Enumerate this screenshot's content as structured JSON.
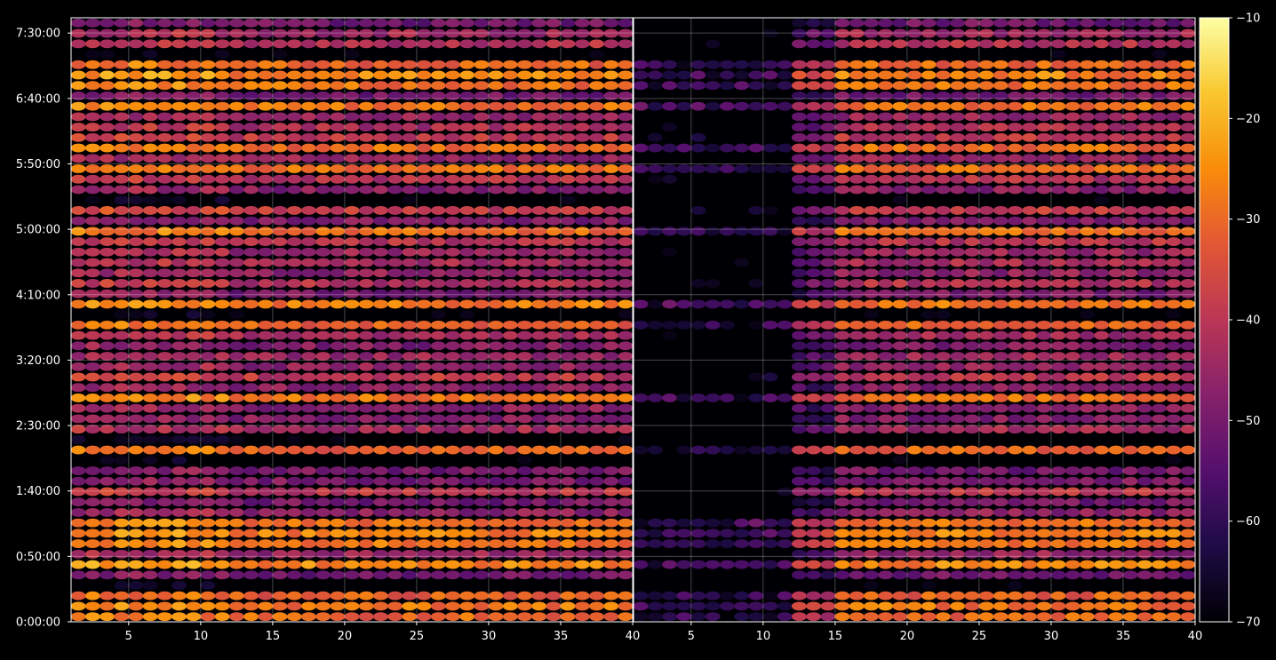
{
  "chart_data": {
    "type": "heatmap",
    "colormap": "inferno",
    "background": "#000000",
    "grid": true,
    "panels": [
      {
        "name": "",
        "xlim": [
          1,
          40
        ],
        "x_ticks": [
          5,
          10,
          15,
          20,
          25,
          30,
          35,
          40
        ],
        "x_tick_labels": [
          "5",
          "10",
          "15",
          "20",
          "25",
          "30",
          "35",
          "40"
        ],
        "channel_range": [
          1,
          39
        ],
        "activity": "full"
      },
      {
        "name": "",
        "xlim": [
          1,
          40
        ],
        "x_ticks": [
          5,
          10,
          15,
          20,
          25,
          30,
          35,
          40
        ],
        "x_tick_labels": [
          "5",
          "10",
          "15",
          "20",
          "25",
          "30",
          "35",
          "40"
        ],
        "channel_range": [
          1,
          39
        ],
        "activity": "low channels mostly empty, rising from ~12"
      }
    ],
    "y_axis": {
      "range_seconds": [
        0,
        27700
      ],
      "tick_seconds": [
        0,
        3000,
        6000,
        9000,
        12000,
        15000,
        18000,
        21000,
        24000,
        27000
      ],
      "tick_labels": [
        "0:00:00",
        "0:50:00",
        "1:40:00",
        "2:30:00",
        "3:20:00",
        "4:10:00",
        "5:00:00",
        "5:50:00",
        "6:40:00",
        "7:30:00"
      ]
    },
    "colorbar": {
      "min": -70,
      "max": -10,
      "ticks": [
        -70,
        -60,
        -50,
        -40,
        -30,
        -20,
        -10
      ],
      "tick_labels": [
        "−70",
        "−60",
        "−50",
        "−40",
        "−30",
        "−20",
        "−10"
      ]
    },
    "rows": 58,
    "strong_row_times": [
      400,
      1000,
      2750,
      3800,
      4300,
      7600,
      8300,
      10300,
      13800,
      14400,
      17900,
      19200,
      20700,
      21700,
      23500,
      24800,
      25800
    ],
    "seed": 7
  }
}
